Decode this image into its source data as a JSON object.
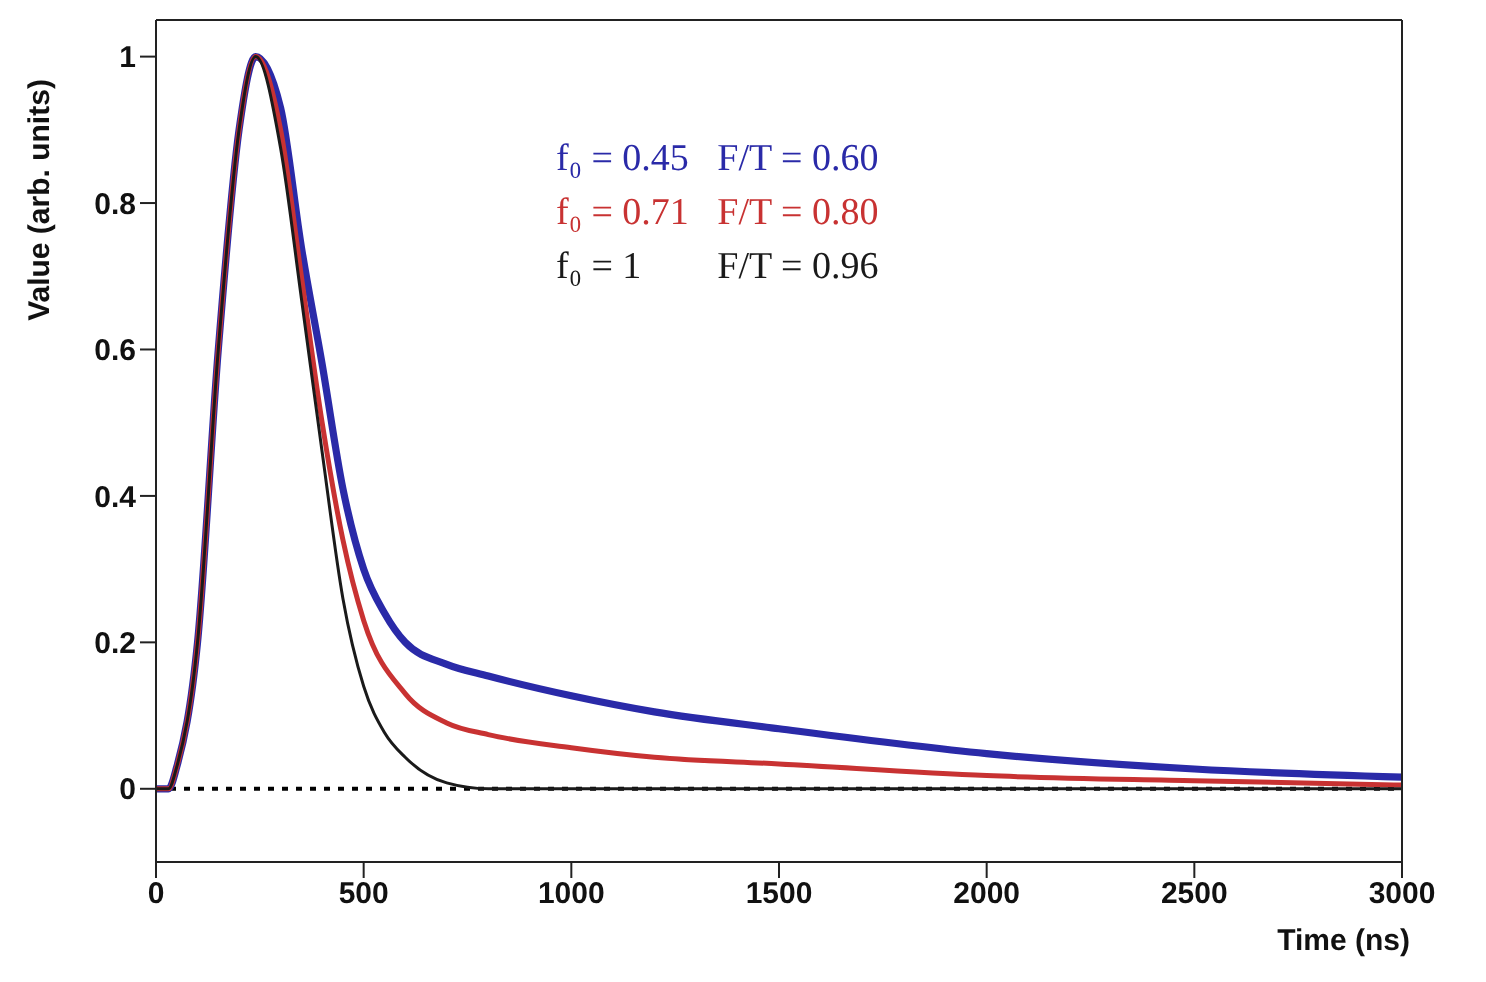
{
  "chart_data": {
    "type": "line",
    "xlabel": "Time (ns)",
    "ylabel": "Value (arb. units)",
    "xlim": [
      0,
      3000
    ],
    "xticks": [
      0,
      500,
      1000,
      1500,
      2000,
      2500,
      3000
    ],
    "ylim": [
      -0.1,
      1.05
    ],
    "yticks": [
      0,
      0.2,
      0.4,
      0.6,
      0.8,
      1
    ],
    "legend": "top",
    "marker": "none",
    "line_style": "solid",
    "ref_lines": [
      {
        "axis": "y",
        "value": 0,
        "color": "#000000",
        "line_style": "dotted"
      }
    ],
    "series": [
      {
        "name": "f₀ = 0.45   F/T = 0.60",
        "color": "#2a2aa8",
        "x": [
          0,
          30,
          50,
          100,
          150,
          200,
          240,
          300,
          350,
          400,
          450,
          500,
          550,
          600,
          700,
          800,
          1000,
          1200,
          1500,
          2000,
          2500,
          3000
        ],
        "values": [
          0,
          0,
          0.03,
          0.2,
          0.6,
          0.9,
          1,
          0.93,
          0.74,
          0.58,
          0.41,
          0.3,
          0.24,
          0.2,
          0.17,
          0.154,
          0.127,
          0.105,
          0.082,
          0.048,
          0.027,
          0.016
        ]
      },
      {
        "name": "f₀ = 0.71   F/T = 0.80",
        "color": "#c83232",
        "x": [
          0,
          30,
          50,
          100,
          150,
          200,
          240,
          300,
          350,
          400,
          450,
          500,
          600,
          700,
          800,
          1000,
          1200,
          1500,
          2000,
          2500,
          3000
        ],
        "values": [
          0,
          0,
          0.03,
          0.2,
          0.6,
          0.9,
          1,
          0.9,
          0.7,
          0.5,
          0.34,
          0.23,
          0.13,
          0.09,
          0.074,
          0.056,
          0.043,
          0.034,
          0.018,
          0.011,
          0.005
        ]
      },
      {
        "name": "f₀ = 1        F/T = 0.96",
        "color": "#1a1a1a",
        "x": [
          0,
          30,
          50,
          100,
          150,
          200,
          240,
          300,
          350,
          400,
          450,
          500,
          550,
          600,
          700,
          800,
          1000,
          3000
        ],
        "values": [
          0,
          0,
          0.03,
          0.2,
          0.6,
          0.9,
          1,
          0.875,
          0.67,
          0.46,
          0.26,
          0.14,
          0.077,
          0.043,
          0.008,
          0,
          0,
          0
        ]
      }
    ]
  }
}
